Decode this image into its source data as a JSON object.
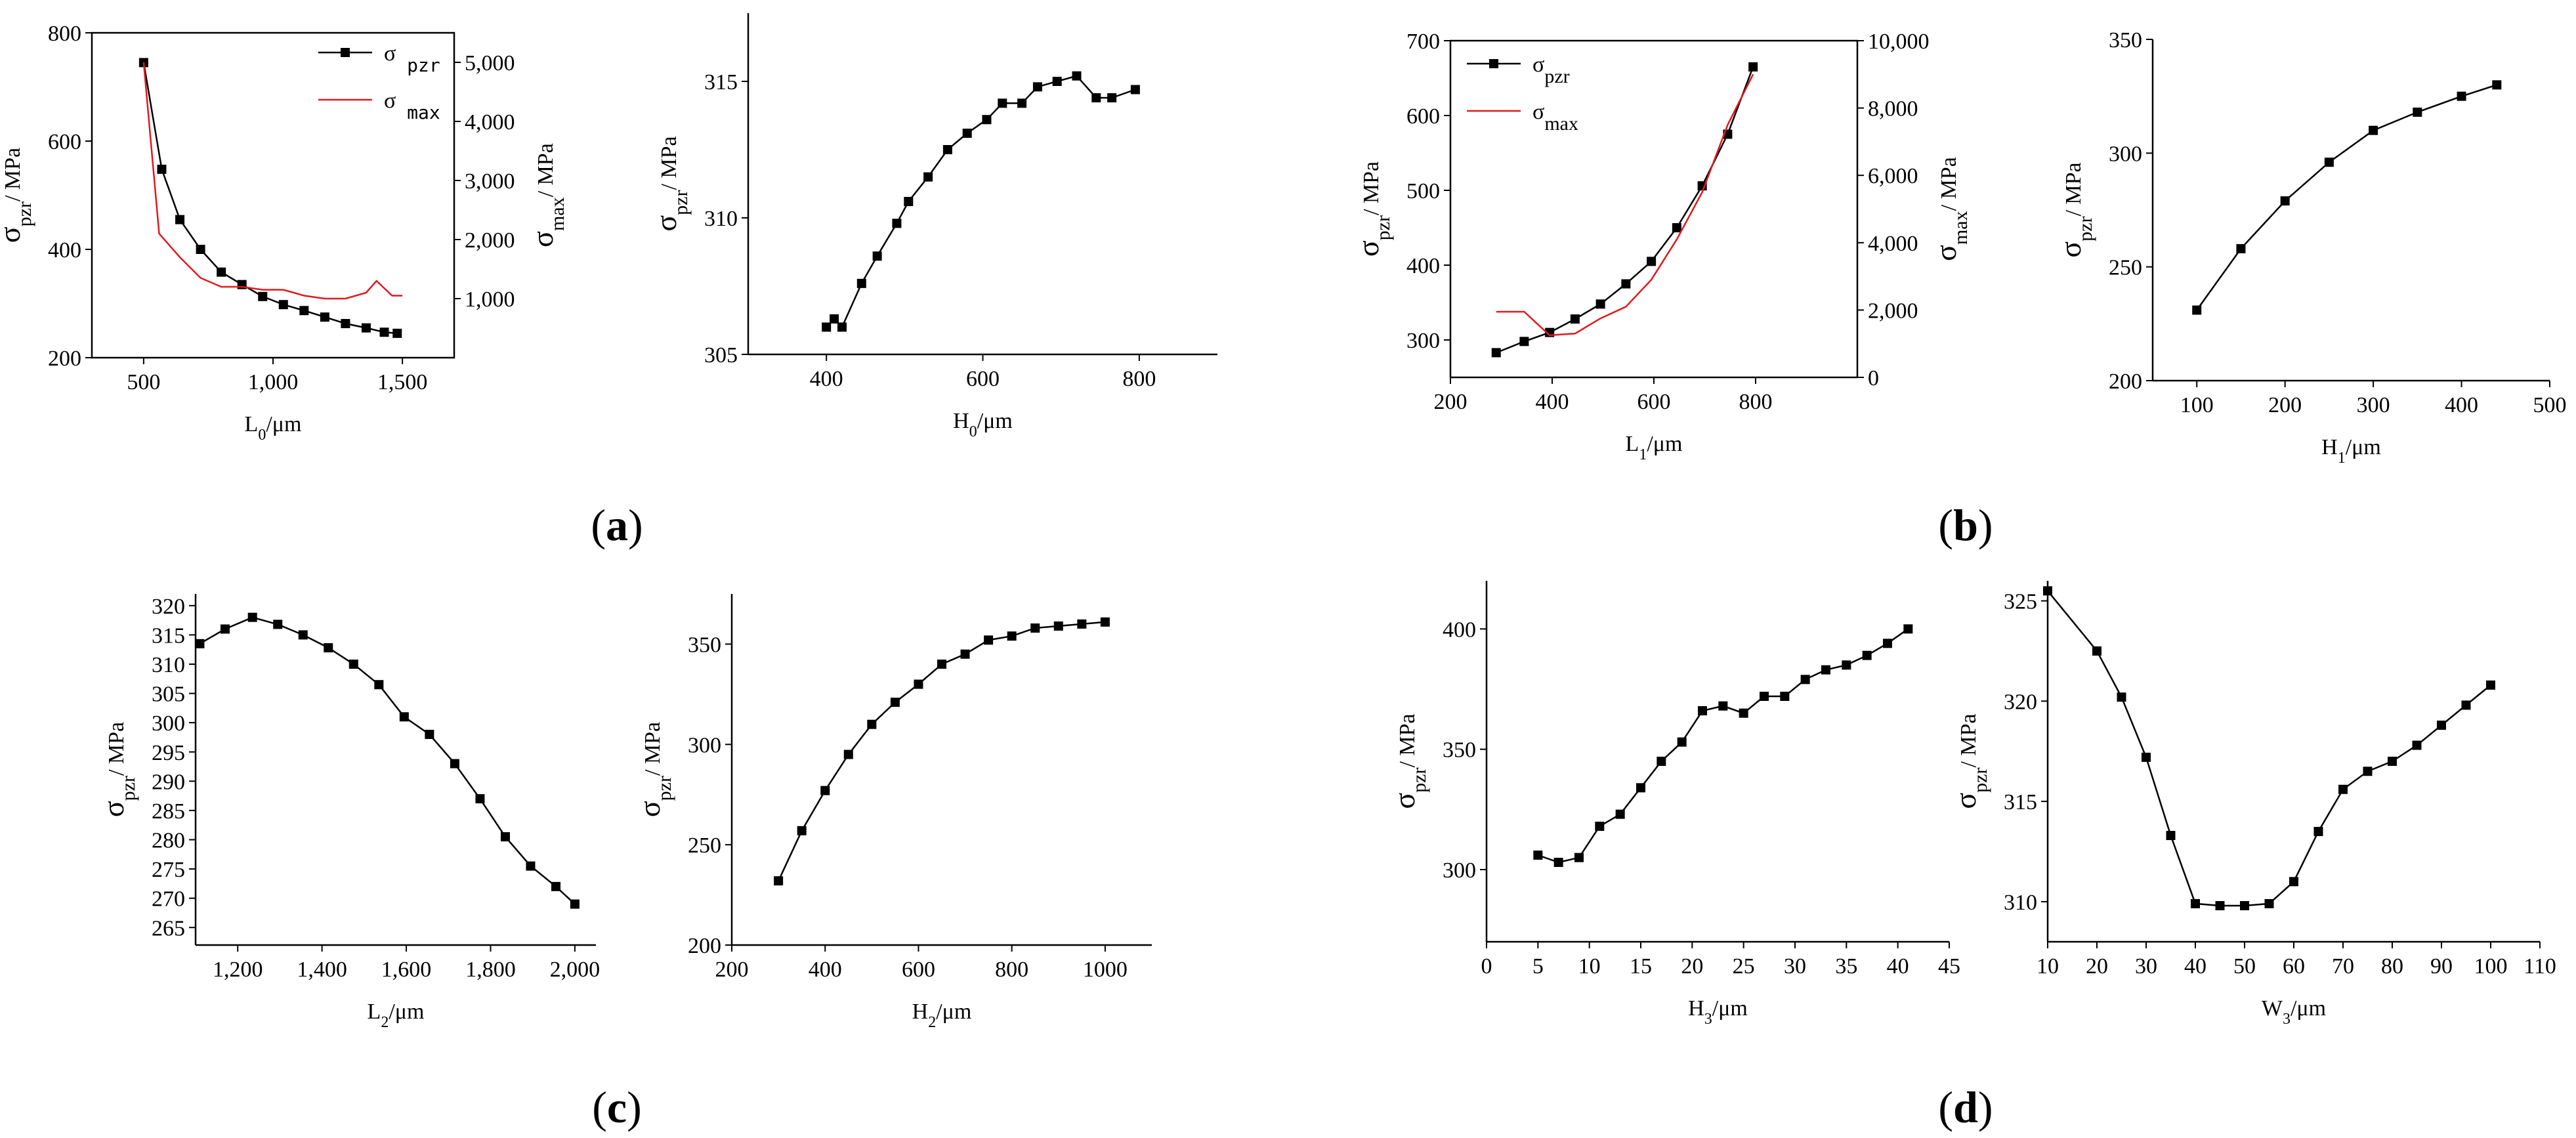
{
  "panel_labels": [
    {
      "open": "(",
      "letter": "a",
      "close": ")"
    },
    {
      "open": "(",
      "letter": "b",
      "close": ")"
    },
    {
      "open": "(",
      "letter": "c",
      "close": ")"
    },
    {
      "open": "(",
      "letter": "d",
      "close": ")"
    }
  ],
  "colors": {
    "black": "#000000",
    "red": "#e0191f"
  },
  "chart_data": [
    {
      "id": "L0",
      "type": "line",
      "panel": "a",
      "xlabel": {
        "main": "L",
        "sub": "0",
        "unit": "/μm"
      },
      "ylabel": {
        "main": "σ",
        "sub": "pzr",
        "unit": "/ MPa"
      },
      "y2label": {
        "main": "σ",
        "sub": "max",
        "unit": "/ MPa"
      },
      "xlim": [
        300,
        1700
      ],
      "ylim": [
        200,
        800
      ],
      "y2lim": [
        0,
        5500
      ],
      "xticks": [
        {
          "v": 500,
          "label": "500"
        },
        {
          "v": 1000,
          "label": "1,000"
        },
        {
          "v": 1500,
          "label": "1,500"
        }
      ],
      "yticks": [
        {
          "v": 200,
          "label": "200"
        },
        {
          "v": 400,
          "label": "400"
        },
        {
          "v": 600,
          "label": "600"
        },
        {
          "v": 800,
          "label": "800"
        }
      ],
      "y2ticks": [
        {
          "v": 1000,
          "label": "1,000"
        },
        {
          "v": 2000,
          "label": "2,000"
        },
        {
          "v": 3000,
          "label": "3,000"
        },
        {
          "v": 4000,
          "label": "4,000"
        },
        {
          "v": 5000,
          "label": "5,000"
        }
      ],
      "legend": [
        {
          "main": "σ",
          "sub": "pzr",
          "color": "#000000",
          "marker": true
        },
        {
          "main": "σ",
          "sub": "max",
          "color": "#e0191f",
          "marker": false
        }
      ],
      "series": [
        {
          "name": "σpzr",
          "axis": "left",
          "color": "#000000",
          "marker": true,
          "x": [
            500,
            570,
            640,
            720,
            800,
            880,
            960,
            1040,
            1120,
            1200,
            1280,
            1360,
            1430,
            1480
          ],
          "y": [
            745,
            548,
            455,
            400,
            358,
            335,
            313,
            298,
            287,
            275,
            263,
            255,
            247,
            245
          ]
        },
        {
          "name": "σmax",
          "axis": "right",
          "color": "#e0191f",
          "marker": false,
          "x": [
            500,
            560,
            640,
            720,
            800,
            880,
            960,
            1040,
            1120,
            1200,
            1280,
            1360,
            1400,
            1460,
            1500
          ],
          "y": [
            5000,
            2100,
            1700,
            1350,
            1200,
            1200,
            1150,
            1150,
            1050,
            1000,
            1000,
            1100,
            1300,
            1050,
            1050
          ]
        }
      ]
    },
    {
      "id": "H0",
      "type": "line",
      "panel": "a",
      "xlabel": {
        "main": "H",
        "sub": "0",
        "unit": "/μm"
      },
      "ylabel": {
        "main": "σ",
        "sub": "pzr",
        "unit": "/ MPa"
      },
      "xlim": [
        300,
        900
      ],
      "ylim": [
        305,
        317.5
      ],
      "xticks": [
        {
          "v": 400,
          "label": "400"
        },
        {
          "v": 600,
          "label": "600"
        },
        {
          "v": 800,
          "label": "800"
        }
      ],
      "yticks": [
        {
          "v": 305,
          "label": "305"
        },
        {
          "v": 310,
          "label": "310"
        },
        {
          "v": 315,
          "label": "315"
        }
      ],
      "series": [
        {
          "name": "σpzr",
          "axis": "left",
          "color": "#000000",
          "marker": true,
          "x": [
            400,
            410,
            420,
            445,
            465,
            490,
            505,
            530,
            555,
            580,
            605,
            625,
            650,
            670,
            695,
            720,
            745,
            765,
            795
          ],
          "y": [
            306.0,
            306.3,
            306.0,
            307.6,
            308.6,
            309.8,
            310.6,
            311.5,
            312.5,
            313.1,
            313.6,
            314.2,
            314.2,
            314.8,
            315.0,
            315.2,
            314.4,
            314.4,
            314.7
          ]
        }
      ]
    },
    {
      "id": "L1",
      "type": "line",
      "panel": "b",
      "xlabel": {
        "main": "L",
        "sub": "1",
        "unit": "/μm"
      },
      "ylabel": {
        "main": "σ",
        "sub": "pzr",
        "unit": "/ MPa"
      },
      "y2label": {
        "main": "σ",
        "sub": "max",
        "unit": "/ MPa"
      },
      "xlim": [
        200,
        1000
      ],
      "ylim": [
        250,
        700
      ],
      "y2lim": [
        0,
        10000
      ],
      "xticks": [
        {
          "v": 200,
          "label": "200"
        },
        {
          "v": 400,
          "label": "400"
        },
        {
          "v": 600,
          "label": "600"
        },
        {
          "v": 800,
          "label": "800"
        }
      ],
      "yticks": [
        {
          "v": 300,
          "label": "300"
        },
        {
          "v": 400,
          "label": "400"
        },
        {
          "v": 500,
          "label": "500"
        },
        {
          "v": 600,
          "label": "600"
        },
        {
          "v": 700,
          "label": "700"
        }
      ],
      "y2ticks": [
        {
          "v": 0,
          "label": "0"
        },
        {
          "v": 2000,
          "label": "2,000"
        },
        {
          "v": 4000,
          "label": "4,000"
        },
        {
          "v": 6000,
          "label": "6,000"
        },
        {
          "v": 8000,
          "label": "8,000"
        },
        {
          "v": 10000,
          "label": "10,000"
        }
      ],
      "legend": [
        {
          "main": "σ",
          "sub": "pzr",
          "color": "#000000",
          "marker": true
        },
        {
          "main": "σ",
          "sub": "max",
          "color": "#e0191f",
          "marker": false
        }
      ],
      "series": [
        {
          "name": "σpzr",
          "axis": "left",
          "color": "#000000",
          "marker": true,
          "x": [
            290,
            345,
            395,
            445,
            495,
            545,
            595,
            645,
            695,
            745,
            795
          ],
          "y": [
            283,
            298,
            310,
            328,
            348,
            375,
            405,
            450,
            506,
            575,
            665
          ]
        },
        {
          "name": "σmax",
          "axis": "right",
          "color": "#e0191f",
          "marker": false,
          "x": [
            290,
            345,
            395,
            445,
            495,
            545,
            595,
            645,
            695,
            745,
            795
          ],
          "y": [
            1950,
            1950,
            1250,
            1300,
            1750,
            2100,
            2900,
            4100,
            5500,
            7500,
            9000
          ]
        }
      ]
    },
    {
      "id": "H1",
      "type": "line",
      "panel": "b",
      "xlabel": {
        "main": "H",
        "sub": "1",
        "unit": "/μm"
      },
      "ylabel": {
        "main": "σ",
        "sub": "pzr",
        "unit": "/ MPa"
      },
      "xlim": [
        50,
        500
      ],
      "ylim": [
        200,
        350
      ],
      "xticks": [
        {
          "v": 100,
          "label": "100"
        },
        {
          "v": 200,
          "label": "200"
        },
        {
          "v": 300,
          "label": "300"
        },
        {
          "v": 400,
          "label": "400"
        },
        {
          "v": 500,
          "label": "500"
        }
      ],
      "yticks": [
        {
          "v": 200,
          "label": "200"
        },
        {
          "v": 250,
          "label": "250"
        },
        {
          "v": 300,
          "label": "300"
        },
        {
          "v": 350,
          "label": "350"
        }
      ],
      "series": [
        {
          "name": "σpzr",
          "axis": "left",
          "color": "#000000",
          "marker": true,
          "x": [
            100,
            150,
            200,
            250,
            300,
            350,
            400,
            440
          ],
          "y": [
            231,
            258,
            279,
            296,
            310,
            318,
            325,
            330
          ]
        }
      ]
    },
    {
      "id": "L2",
      "type": "line",
      "panel": "c",
      "xlabel": {
        "main": "L",
        "sub": "2",
        "unit": "/μm"
      },
      "ylabel": {
        "main": "σ",
        "sub": "pzr",
        "unit": "/ MPa"
      },
      "xlim": [
        1100,
        2050
      ],
      "ylim": [
        262,
        322
      ],
      "xticks": [
        {
          "v": 1200,
          "label": "1,200"
        },
        {
          "v": 1400,
          "label": "1,400"
        },
        {
          "v": 1600,
          "label": "1,600"
        },
        {
          "v": 1800,
          "label": "1,800"
        },
        {
          "v": 2000,
          "label": "2,000"
        }
      ],
      "yticks": [
        {
          "v": 265,
          "label": "265"
        },
        {
          "v": 270,
          "label": "270"
        },
        {
          "v": 275,
          "label": "275"
        },
        {
          "v": 280,
          "label": "280"
        },
        {
          "v": 285,
          "label": "285"
        },
        {
          "v": 290,
          "label": "290"
        },
        {
          "v": 295,
          "label": "295"
        },
        {
          "v": 300,
          "label": "300"
        },
        {
          "v": 305,
          "label": "305"
        },
        {
          "v": 310,
          "label": "310"
        },
        {
          "v": 315,
          "label": "315"
        },
        {
          "v": 320,
          "label": "320"
        }
      ],
      "series": [
        {
          "name": "σpzr",
          "axis": "left",
          "color": "#000000",
          "marker": true,
          "x": [
            1110,
            1170,
            1235,
            1295,
            1355,
            1415,
            1475,
            1535,
            1595,
            1655,
            1715,
            1775,
            1835,
            1895,
            1955,
            2000
          ],
          "y": [
            313.5,
            316.0,
            318.0,
            316.8,
            315.0,
            312.8,
            310.0,
            306.5,
            301.0,
            298.0,
            293.0,
            287.0,
            280.5,
            275.5,
            272.0,
            269.0
          ]
        }
      ]
    },
    {
      "id": "H2",
      "type": "line",
      "panel": "c",
      "xlabel": {
        "main": "H",
        "sub": "2",
        "unit": "/μm"
      },
      "ylabel": {
        "main": "σ",
        "sub": "pzr",
        "unit": "/ MPa"
      },
      "xlim": [
        200,
        1100
      ],
      "ylim": [
        200,
        375
      ],
      "xticks": [
        {
          "v": 200,
          "label": "200"
        },
        {
          "v": 400,
          "label": "400"
        },
        {
          "v": 600,
          "label": "600"
        },
        {
          "v": 800,
          "label": "800"
        },
        {
          "v": 1000,
          "label": "1000"
        }
      ],
      "yticks": [
        {
          "v": 200,
          "label": "200"
        },
        {
          "v": 250,
          "label": "250"
        },
        {
          "v": 300,
          "label": "300"
        },
        {
          "v": 350,
          "label": "350"
        }
      ],
      "series": [
        {
          "name": "σpzr",
          "axis": "left",
          "color": "#000000",
          "marker": true,
          "x": [
            300,
            350,
            400,
            450,
            500,
            550,
            600,
            650,
            700,
            750,
            800,
            850,
            900,
            950,
            1000
          ],
          "y": [
            232,
            257,
            277,
            295,
            310,
            321,
            330,
            340,
            345,
            352,
            354,
            358,
            359,
            360,
            361
          ]
        }
      ]
    },
    {
      "id": "H3",
      "type": "line",
      "panel": "d",
      "xlabel": {
        "main": "H",
        "sub": "3",
        "unit": "/μm"
      },
      "ylabel": {
        "main": "σ",
        "sub": "pzr",
        "unit": "/ MPa"
      },
      "xlim": [
        0,
        45
      ],
      "ylim": [
        270,
        420
      ],
      "xticks": [
        {
          "v": 0,
          "label": "0"
        },
        {
          "v": 5,
          "label": "5"
        },
        {
          "v": 10,
          "label": "10"
        },
        {
          "v": 15,
          "label": "15"
        },
        {
          "v": 20,
          "label": "20"
        },
        {
          "v": 25,
          "label": "25"
        },
        {
          "v": 30,
          "label": "30"
        },
        {
          "v": 35,
          "label": "35"
        },
        {
          "v": 40,
          "label": "40"
        },
        {
          "v": 45,
          "label": "45"
        }
      ],
      "yticks": [
        {
          "v": 300,
          "label": "300"
        },
        {
          "v": 350,
          "label": "350"
        },
        {
          "v": 400,
          "label": "400"
        }
      ],
      "series": [
        {
          "name": "σpzr",
          "axis": "left",
          "color": "#000000",
          "marker": true,
          "x": [
            5,
            7,
            9,
            11,
            13,
            15,
            17,
            19,
            21,
            23,
            25,
            27,
            29,
            31,
            33,
            35,
            37,
            39,
            41
          ],
          "y": [
            306,
            303,
            305,
            318,
            323,
            334,
            345,
            353,
            366,
            368,
            365,
            372,
            372,
            379,
            383,
            385,
            389,
            394,
            400
          ]
        }
      ]
    },
    {
      "id": "W3",
      "type": "line",
      "panel": "d",
      "xlabel": {
        "main": "W",
        "sub": "3",
        "unit": "/μm"
      },
      "ylabel": {
        "main": "σ",
        "sub": "pzr",
        "unit": "/ MPa"
      },
      "xlim": [
        10,
        110
      ],
      "ylim": [
        308,
        326
      ],
      "xticks": [
        {
          "v": 10,
          "label": "10"
        },
        {
          "v": 20,
          "label": "20"
        },
        {
          "v": 30,
          "label": "30"
        },
        {
          "v": 40,
          "label": "40"
        },
        {
          "v": 50,
          "label": "50"
        },
        {
          "v": 60,
          "label": "60"
        },
        {
          "v": 70,
          "label": "70"
        },
        {
          "v": 80,
          "label": "80"
        },
        {
          "v": 90,
          "label": "90"
        },
        {
          "v": 100,
          "label": "100"
        },
        {
          "v": 110,
          "label": "110"
        }
      ],
      "yticks": [
        {
          "v": 310,
          "label": "310"
        },
        {
          "v": 315,
          "label": "315"
        },
        {
          "v": 320,
          "label": "320"
        },
        {
          "v": 325,
          "label": "325"
        }
      ],
      "series": [
        {
          "name": "σpzr",
          "axis": "left",
          "color": "#000000",
          "marker": true,
          "x": [
            10,
            20,
            25,
            30,
            35,
            40,
            45,
            50,
            55,
            60,
            65,
            70,
            75,
            80,
            85,
            90,
            95,
            100
          ],
          "y": [
            325.5,
            322.5,
            320.2,
            317.2,
            313.3,
            309.9,
            309.8,
            309.8,
            309.9,
            311.0,
            313.5,
            315.6,
            316.5,
            317.0,
            317.8,
            318.8,
            319.8,
            320.8
          ]
        }
      ]
    }
  ]
}
